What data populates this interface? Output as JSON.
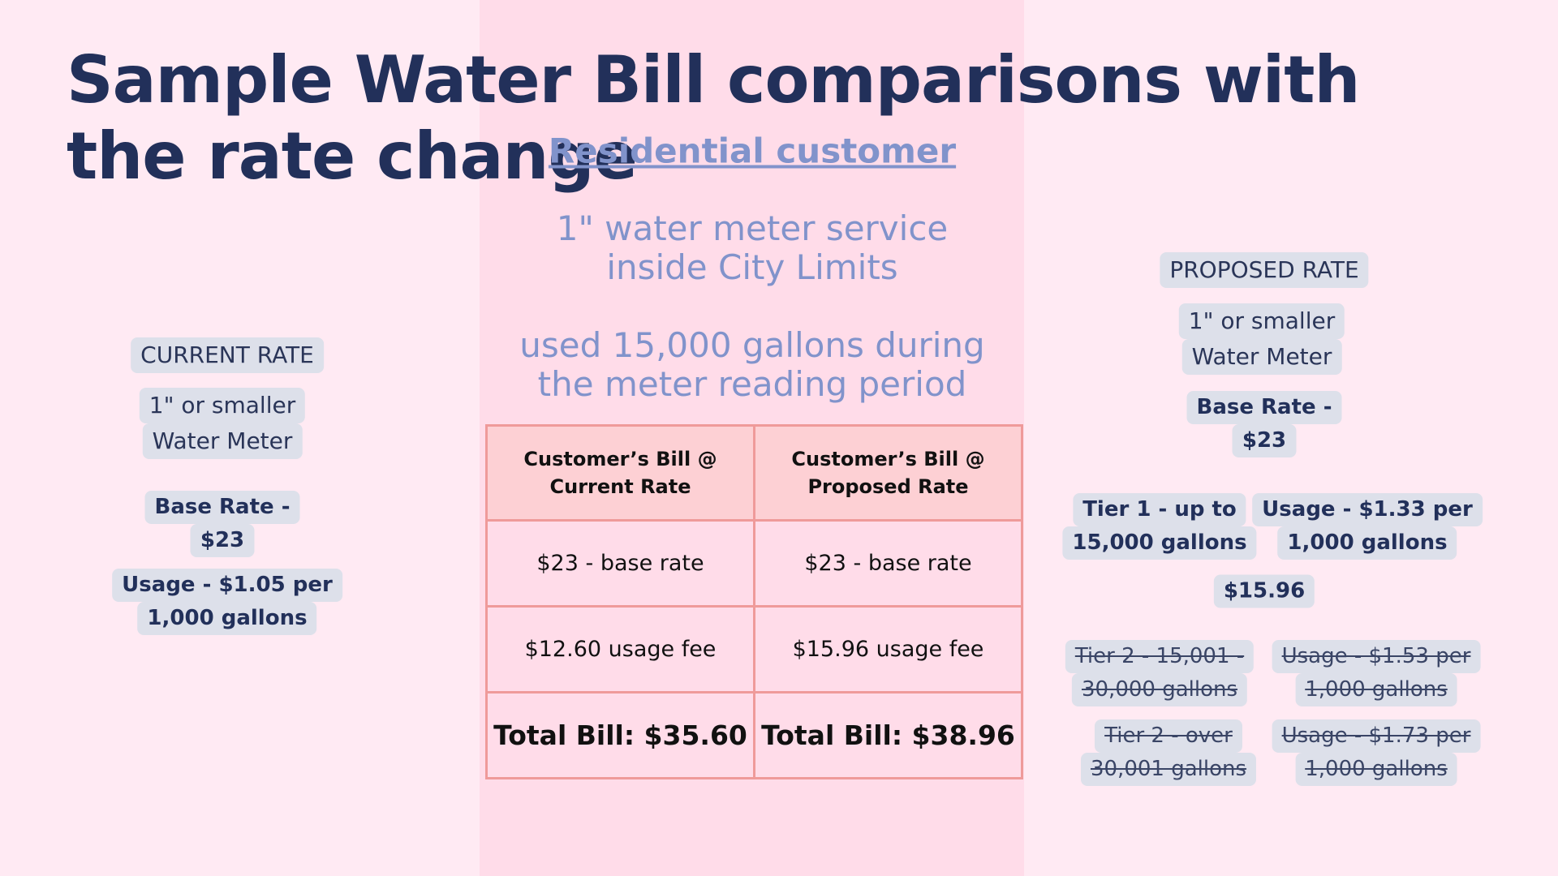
{
  "title": [
    "Sample Water Bill comparisons with",
    "the rate change"
  ],
  "subtitle": "Residential customer",
  "service": [
    "1\" water meter service",
    "inside City Limits"
  ],
  "usage_note": [
    "used 15,000 gallons during",
    "the meter reading period"
  ],
  "current_rate": {
    "heading": "CURRENT RATE",
    "meter": [
      "1\" or smaller",
      "Water Meter"
    ],
    "base_rate": [
      "Base Rate -",
      "$23"
    ],
    "usage": [
      "Usage - $1.05 per",
      "1,000 gallons"
    ]
  },
  "proposed_rate": {
    "heading": "PROPOSED RATE",
    "meter": [
      "1\" or smaller",
      "Water Meter"
    ],
    "base_rate": [
      "Base Rate -",
      "$23"
    ],
    "tier1": [
      "Tier 1 - up to",
      "15,000 gallons"
    ],
    "tier1_usage": [
      "Usage - $1.33 per",
      "1,000 gallons"
    ],
    "tier1_amount": "$15.96",
    "tier2": [
      "Tier 2 - 15,001 -",
      "30,000 gallons"
    ],
    "tier2_usage": [
      "Usage - $1.53 per",
      "1,000 gallons"
    ],
    "tier3": [
      "Tier 2 - over",
      "30,001 gallons"
    ],
    "tier3_usage": [
      "Usage - $1.73 per",
      "1,000 gallons"
    ]
  },
  "table": {
    "headers": [
      [
        "Customer’s Bill @",
        "Current Rate"
      ],
      [
        "Customer’s Bill @",
        "Proposed Rate"
      ]
    ],
    "rows": [
      [
        "$23 - base rate",
        "$23 - base rate"
      ],
      [
        "$12.60 usage fee",
        "$15.96 usage fee"
      ],
      [
        "Total Bill: $35.60",
        "Total Bill: $38.96"
      ]
    ]
  }
}
